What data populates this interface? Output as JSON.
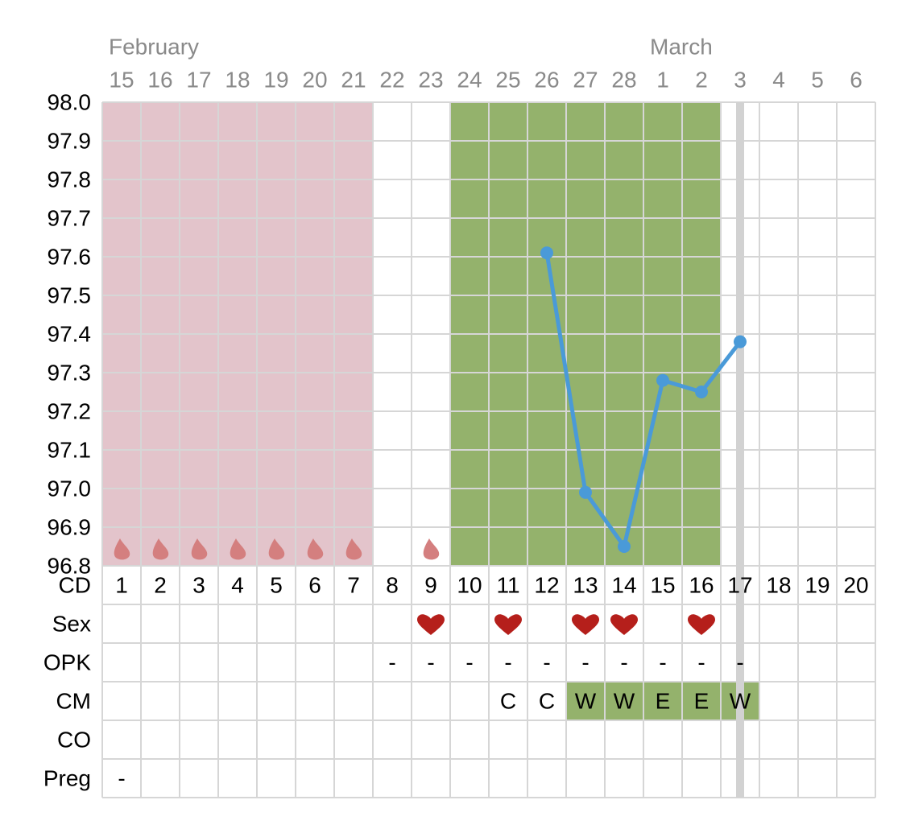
{
  "chart_data": {
    "type": "line",
    "month_labels": [
      "February",
      null,
      null,
      null,
      null,
      null,
      null,
      null,
      null,
      null,
      null,
      null,
      null,
      null,
      "March",
      null,
      null,
      null,
      null,
      null
    ],
    "categories": [
      "15",
      "16",
      "17",
      "18",
      "19",
      "20",
      "21",
      "22",
      "23",
      "24",
      "25",
      "26",
      "27",
      "28",
      "1",
      "2",
      "3",
      "4",
      "5",
      "6"
    ],
    "cycle_days": [
      "1",
      "2",
      "3",
      "4",
      "5",
      "6",
      "7",
      "8",
      "9",
      "10",
      "11",
      "12",
      "13",
      "14",
      "15",
      "16",
      "17",
      "18",
      "19",
      "20"
    ],
    "values": [
      null,
      null,
      null,
      null,
      null,
      null,
      null,
      null,
      null,
      null,
      null,
      97.61,
      96.99,
      96.85,
      97.28,
      97.25,
      97.38,
      null,
      null,
      null
    ],
    "color": "#4a9ad8",
    "ylim": [
      96.8,
      98.0
    ],
    "yticks": [
      {
        "value": 98.0,
        "label": "98.0"
      },
      97.9,
      97.8,
      97.7,
      97.6,
      97.5,
      97.4,
      97.3,
      97.2,
      97.1,
      {
        "value": 97.0,
        "label": "97.0"
      },
      96.9,
      96.8
    ],
    "grid": true,
    "row_labels": [
      "CD",
      "Sex",
      "OPK",
      "CM",
      "CO",
      "Preg"
    ],
    "period_shading": [
      true,
      true,
      true,
      true,
      true,
      true,
      true,
      false,
      false,
      false,
      false,
      false,
      false,
      false,
      false,
      false,
      false,
      false,
      false,
      false
    ],
    "period_drops": [
      true,
      true,
      true,
      true,
      true,
      true,
      true,
      false,
      true,
      false,
      false,
      false,
      false,
      false,
      false,
      false,
      false,
      false,
      false,
      false
    ],
    "fertile_window": [
      false,
      false,
      false,
      false,
      false,
      false,
      false,
      false,
      false,
      true,
      true,
      true,
      true,
      true,
      true,
      true,
      false,
      false,
      false,
      false
    ],
    "today": [
      false,
      false,
      false,
      false,
      false,
      false,
      false,
      false,
      false,
      false,
      false,
      false,
      false,
      false,
      false,
      false,
      true,
      false,
      false,
      false
    ],
    "sex": [
      false,
      false,
      false,
      false,
      false,
      false,
      false,
      false,
      true,
      false,
      true,
      false,
      true,
      true,
      false,
      true,
      false,
      false,
      false,
      false
    ],
    "opk": [
      null,
      null,
      null,
      null,
      null,
      null,
      null,
      "-",
      "-",
      "-",
      "-",
      "-",
      "-",
      "-",
      "-",
      "-",
      "-",
      null,
      null,
      null
    ],
    "cm": [
      null,
      null,
      null,
      null,
      null,
      null,
      null,
      null,
      null,
      null,
      "C",
      "C",
      "W",
      "W",
      "E",
      "E",
      "W",
      null,
      null,
      null
    ],
    "cm_fertile": [
      false,
      false,
      false,
      false,
      false,
      false,
      false,
      false,
      false,
      false,
      false,
      false,
      true,
      true,
      true,
      true,
      true,
      false,
      false,
      false
    ],
    "co": [
      null,
      null,
      null,
      null,
      null,
      null,
      null,
      null,
      null,
      null,
      null,
      null,
      null,
      null,
      null,
      null,
      null,
      null,
      null,
      null
    ],
    "preg": [
      "-",
      null,
      null,
      null,
      null,
      null,
      null,
      null,
      null,
      null,
      null,
      null,
      null,
      null,
      null,
      null,
      null,
      null,
      null,
      null
    ],
    "period_color": "#e3c4cb",
    "fertile_color": "#94b26c",
    "drop_color": "#d47f7f",
    "heart_color": "#b51f1b",
    "today_color": "#d2d2d2"
  }
}
